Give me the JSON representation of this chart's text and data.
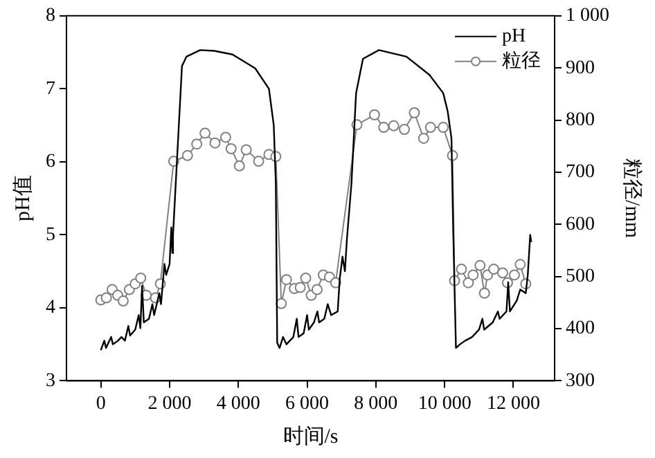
{
  "chart_data": {
    "type": "line",
    "xlabel": "时间/s",
    "ylabel": "pH值",
    "y2label": "粒径/mm",
    "xlim": [
      -1000,
      13200
    ],
    "xticks": [
      0,
      {
        "value": 2000,
        "label": "2 000"
      },
      {
        "value": 4000,
        "label": "4 000"
      },
      {
        "value": 6000,
        "label": "6 000"
      },
      {
        "value": 8000,
        "label": "8 000"
      },
      {
        "value": 10000,
        "label": "10 000"
      },
      {
        "value": 12000,
        "label": "12 000"
      }
    ],
    "ylim": [
      3,
      8
    ],
    "yticks": [
      3,
      4,
      5,
      6,
      7,
      8
    ],
    "y2lim": [
      300,
      1000
    ],
    "y2ticks": [
      300,
      400,
      500,
      600,
      700,
      800,
      900,
      {
        "value": 1000,
        "label": "1 000"
      }
    ],
    "grid": false,
    "legend": "top right",
    "series": [
      {
        "name": "pH",
        "color": "#000000",
        "marker": "none",
        "x": [
          0,
          100,
          150,
          300,
          350,
          500,
          600,
          700,
          800,
          850,
          1000,
          1100,
          1150,
          1200,
          1250,
          1400,
          1500,
          1550,
          1700,
          1750,
          1850,
          1900,
          2000,
          2050,
          2080,
          2100,
          2360,
          2490,
          2890,
          3300,
          3830,
          4490,
          4890,
          5030,
          5090,
          5130,
          5200,
          5300,
          5400,
          5600,
          5700,
          5750,
          5900,
          6000,
          6050,
          6200,
          6300,
          6350,
          6500,
          6600,
          6700,
          6890,
          6950,
          7030,
          7100,
          7160,
          7290,
          7425,
          7625,
          8090,
          8890,
          9560,
          9960,
          10090,
          10200,
          10250,
          10330,
          10450,
          10600,
          10800,
          11000,
          11100,
          11150,
          11400,
          11550,
          11600,
          11800,
          11850,
          11900,
          12100,
          12200,
          12360,
          12420,
          12490,
          12520
        ],
        "values": [
          3.42,
          3.55,
          3.45,
          3.6,
          3.5,
          3.55,
          3.6,
          3.55,
          3.75,
          3.62,
          3.7,
          3.9,
          3.72,
          4.3,
          3.8,
          3.85,
          4.05,
          3.9,
          4.2,
          4.05,
          4.6,
          4.45,
          4.6,
          5.1,
          4.75,
          5.0,
          7.31,
          7.44,
          7.53,
          7.52,
          7.47,
          7.28,
          7.0,
          6.5,
          5.7,
          3.52,
          3.45,
          3.6,
          3.5,
          3.6,
          3.85,
          3.6,
          3.65,
          3.9,
          3.7,
          3.8,
          3.95,
          3.8,
          3.85,
          4.05,
          3.9,
          3.95,
          4.4,
          4.7,
          4.5,
          4.95,
          5.7,
          6.94,
          7.41,
          7.53,
          7.44,
          7.19,
          6.94,
          6.69,
          6.32,
          5.07,
          3.45,
          3.5,
          3.55,
          3.6,
          3.7,
          3.85,
          3.7,
          3.8,
          3.95,
          3.85,
          3.95,
          4.35,
          3.95,
          4.1,
          4.25,
          4.2,
          4.45,
          5.0,
          4.9
        ]
      },
      {
        "name": "粒径",
        "color": "#808080",
        "marker": "circle",
        "axis": "y2",
        "x": [
          0,
          160,
          330,
          490,
          650,
          830,
          1000,
          1160,
          1320,
          1590,
          1730,
          2120,
          2520,
          2790,
          3030,
          3320,
          3630,
          3790,
          4030,
          4230,
          4590,
          4890,
          5090,
          5250,
          5400,
          5630,
          5800,
          5960,
          6120,
          6290,
          6470,
          6650,
          6830,
          7450,
          7960,
          8230,
          8520,
          8830,
          9120,
          9390,
          9590,
          9960,
          10230,
          10290,
          10490,
          10690,
          10830,
          11030,
          11160,
          11250,
          11430,
          11690,
          11830,
          12030,
          12200,
          12360
        ],
        "values": [
          455,
          459,
          475,
          464,
          453,
          475,
          486,
          497,
          464,
          459,
          486,
          721,
          732,
          754,
          775,
          756,
          767,
          745,
          712,
          743,
          721,
          734,
          730,
          448,
          494,
          477,
          479,
          497,
          464,
          475,
          503,
          499,
          488,
          791,
          810,
          786,
          789,
          782,
          814,
          765,
          786,
          786,
          732,
          492,
          514,
          488,
          503,
          521,
          468,
          503,
          514,
          507,
          488,
          503,
          523,
          486
        ]
      }
    ]
  }
}
